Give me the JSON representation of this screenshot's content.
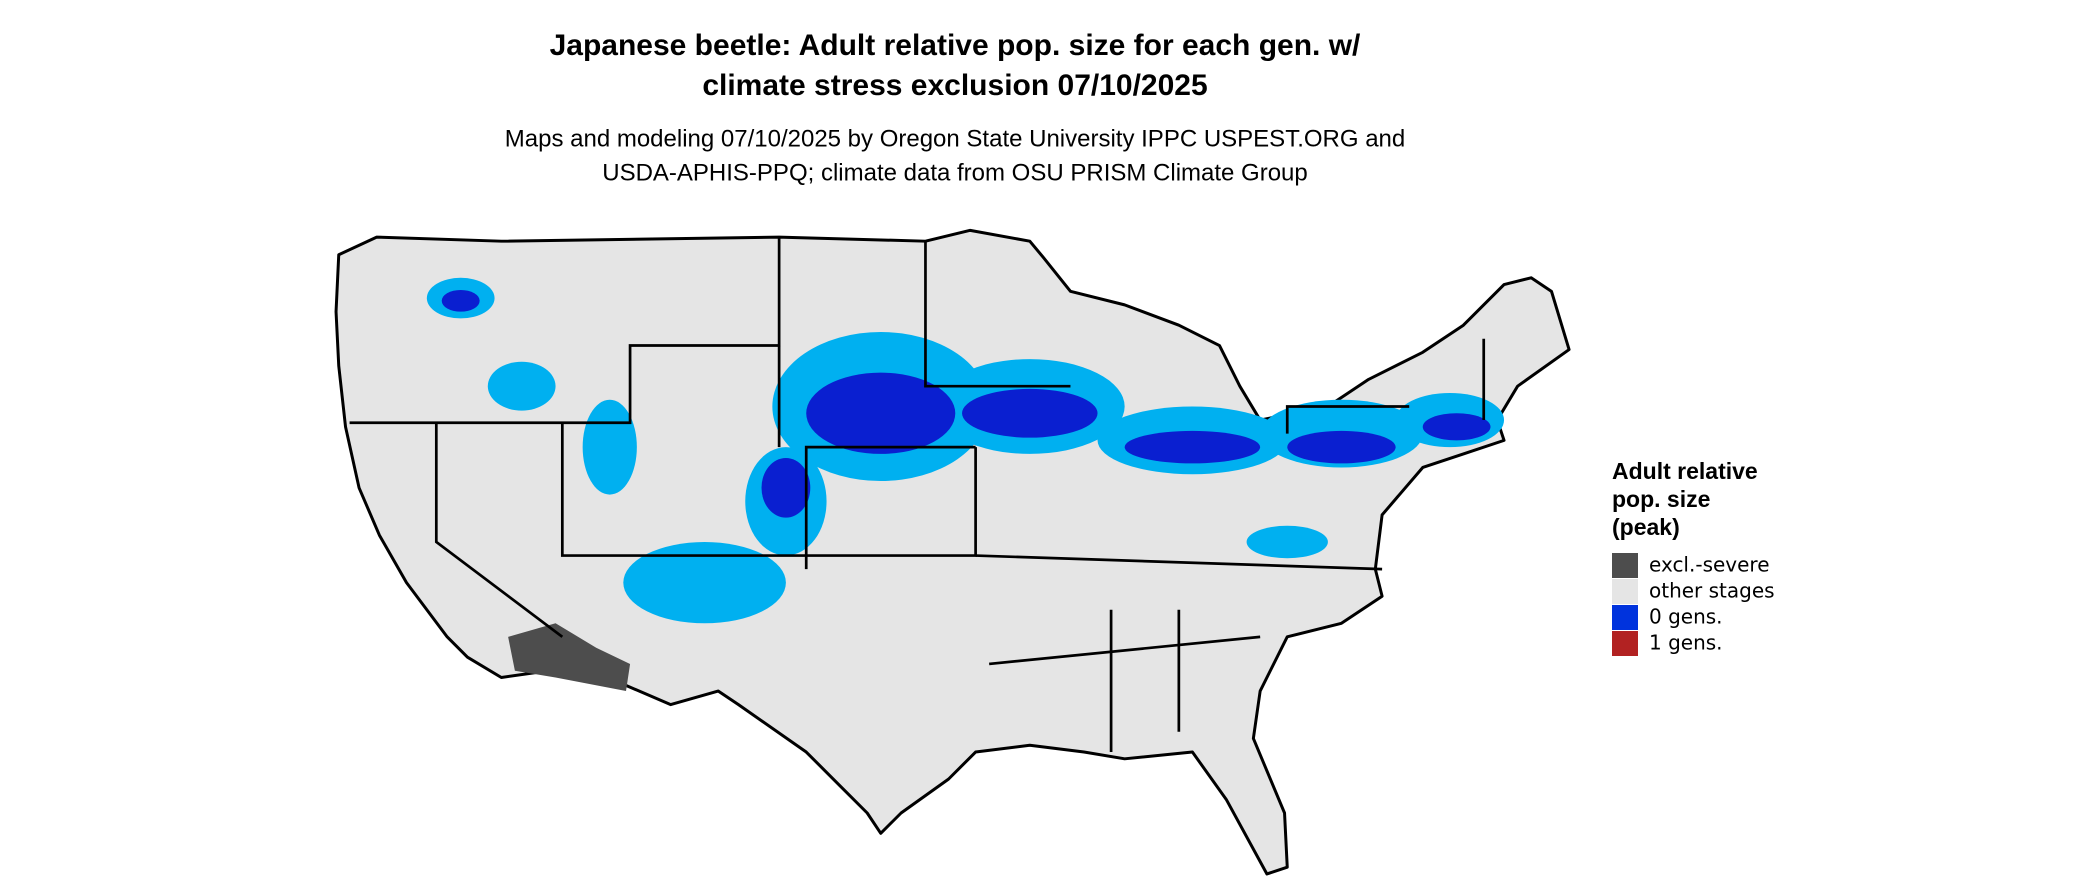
{
  "title": [
    "Japanese beetle: Adult relative pop. size for each gen. w/",
    "climate stress exclusion 07/10/2025"
  ],
  "subtitle": [
    "Maps and modeling 07/10/2025 by Oregon State University IPPC USPEST.ORG and",
    "USDA-APHIS-PPQ; climate data from OSU PRISM Climate Group"
  ],
  "legend": {
    "title": [
      "Adult relative",
      "pop. size",
      "(peak)"
    ],
    "items": [
      {
        "label": "excl.-severe",
        "color": "#4d4d4d"
      },
      {
        "label": "other stages",
        "color": "#e5e5e5"
      },
      {
        "label": "0 gens.",
        "color": "#0033dd"
      },
      {
        "label": "1 gens.",
        "color": "#b22222"
      }
    ]
  }
}
